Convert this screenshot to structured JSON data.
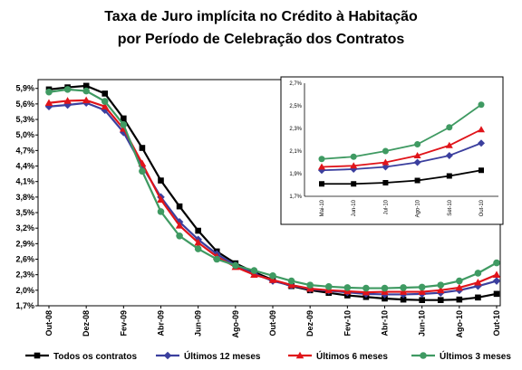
{
  "title": {
    "line1": "Taxa de Juro implícita no Crédito à Habitação",
    "line2": "por Período de Celebração dos Contratos"
  },
  "chart_data": [
    {
      "type": "line",
      "ylim": [
        1.7,
        6.0
      ],
      "yticks": [
        "1,7%",
        "2,0%",
        "2,3%",
        "2,6%",
        "2,9%",
        "3,2%",
        "3,5%",
        "3,8%",
        "4,1%",
        "4,4%",
        "4,7%",
        "5,0%",
        "5,3%",
        "5,6%",
        "5,9%"
      ],
      "ytick_values": [
        1.7,
        2.0,
        2.3,
        2.6,
        2.9,
        3.2,
        3.5,
        3.8,
        4.1,
        4.4,
        4.7,
        5.0,
        5.3,
        5.6,
        5.9
      ],
      "x": [
        "Out-08",
        "Nov-08",
        "Dez-08",
        "Jan-09",
        "Fev-09",
        "Mar-09",
        "Abr-09",
        "Mai-09",
        "Jun-09",
        "Jul-09",
        "Ago-09",
        "Set-09",
        "Out-09",
        "Nov-09",
        "Dez-09",
        "Jan-10",
        "Fev-10",
        "Mar-10",
        "Abr-10",
        "Mai-10",
        "Jun-10",
        "Jul-10",
        "Ago-10",
        "Set-10",
        "Out-10"
      ],
      "xticks": [
        "Out-08",
        "Dez-08",
        "Fev-09",
        "Abr-09",
        "Jun-09",
        "Ago-09",
        "Out-09",
        "Dez-09",
        "Fev-10",
        "Abr-10",
        "Jun-10",
        "Ago-10",
        "Out-10"
      ],
      "legend_position": "bottom",
      "series": [
        {
          "name": "Todos os contratos",
          "color": "#000000",
          "marker": "square",
          "values": [
            5.88,
            5.92,
            5.95,
            5.8,
            5.32,
            4.75,
            4.12,
            3.62,
            3.15,
            2.75,
            2.52,
            2.35,
            2.2,
            2.08,
            2.0,
            1.95,
            1.9,
            1.87,
            1.84,
            1.82,
            1.81,
            1.81,
            1.82,
            1.86,
            1.93
          ]
        },
        {
          "name": "Últimos 12 meses",
          "color": "#3b3f9e",
          "marker": "diamond",
          "values": [
            5.55,
            5.58,
            5.62,
            5.48,
            5.05,
            4.4,
            3.8,
            3.32,
            2.98,
            2.7,
            2.48,
            2.32,
            2.18,
            2.09,
            2.02,
            1.99,
            1.96,
            1.93,
            1.92,
            1.92,
            1.93,
            1.95,
            2.0,
            2.08,
            2.18
          ]
        },
        {
          "name": "Últimos 6 meses",
          "color": "#e0141a",
          "marker": "triangle",
          "values": [
            5.62,
            5.66,
            5.67,
            5.55,
            5.12,
            4.45,
            3.75,
            3.25,
            2.92,
            2.65,
            2.45,
            2.3,
            2.2,
            2.1,
            2.03,
            2.0,
            1.98,
            1.96,
            1.97,
            1.97,
            1.97,
            2.0,
            2.05,
            2.15,
            2.3
          ]
        },
        {
          "name": "Últimos 3 meses",
          "color": "#3f9a62",
          "marker": "circle",
          "values": [
            5.83,
            5.88,
            5.85,
            5.65,
            5.2,
            4.3,
            3.52,
            3.05,
            2.8,
            2.6,
            2.48,
            2.38,
            2.28,
            2.18,
            2.1,
            2.07,
            2.05,
            2.04,
            2.04,
            2.05,
            2.06,
            2.1,
            2.18,
            2.33,
            2.53
          ]
        }
      ]
    },
    {
      "type": "line",
      "ylim": [
        1.7,
        2.7
      ],
      "yticks": [
        "1,7%",
        "1,9%",
        "2,1%",
        "2,3%",
        "2,5%",
        "2,7%"
      ],
      "ytick_values": [
        1.7,
        1.9,
        2.1,
        2.3,
        2.5,
        2.7
      ],
      "x": [
        "Mai-10",
        "Jun-10",
        "Jul-10",
        "Ago-10",
        "Set-10",
        "Out-10"
      ],
      "series": [
        {
          "name": "Todos os contratos",
          "color": "#000000",
          "marker": "square",
          "values": [
            1.81,
            1.81,
            1.82,
            1.84,
            1.88,
            1.93
          ]
        },
        {
          "name": "Últimos 12 meses",
          "color": "#3b3f9e",
          "marker": "diamond",
          "values": [
            1.93,
            1.94,
            1.96,
            2.0,
            2.06,
            2.17
          ]
        },
        {
          "name": "Últimos 6 meses",
          "color": "#e0141a",
          "marker": "triangle",
          "values": [
            1.96,
            1.97,
            2.0,
            2.06,
            2.15,
            2.29
          ]
        },
        {
          "name": "Últimos 3 meses",
          "color": "#3f9a62",
          "marker": "circle",
          "values": [
            2.03,
            2.05,
            2.1,
            2.16,
            2.31,
            2.51
          ]
        }
      ]
    }
  ]
}
